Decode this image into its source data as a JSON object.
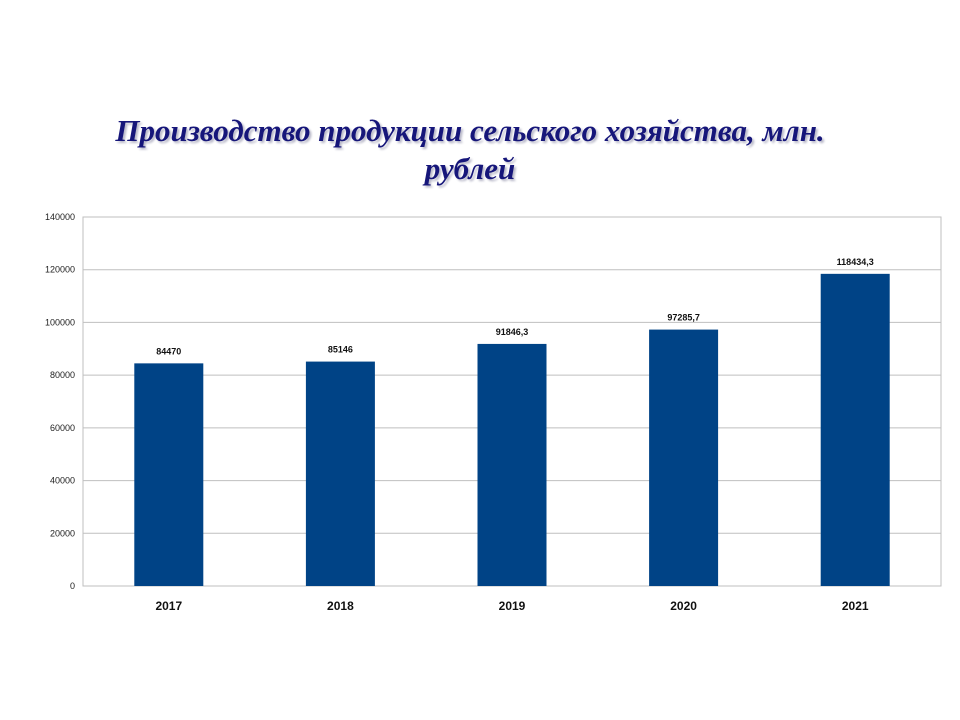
{
  "title_line1": "Производство продукции сельского хозяйства, млн.",
  "title_line2": "рублей",
  "chart_data": {
    "type": "bar",
    "title": "Производство продукции сельского хозяйства, млн. рублей",
    "categories": [
      "2017",
      "2018",
      "2019",
      "2020",
      "2021"
    ],
    "values": [
      84470,
      85146,
      91846.3,
      97285.7,
      118434.3
    ],
    "data_labels": [
      "84470",
      "85146",
      "91846,3",
      "97285,7",
      "118434,3"
    ],
    "y_ticks": [
      0,
      20000,
      40000,
      60000,
      80000,
      100000,
      120000,
      140000
    ],
    "ylim": [
      0,
      140000
    ],
    "xlabel": "",
    "ylabel": "",
    "grid": true,
    "legend": "none",
    "bar_color": "#004386",
    "grid_color": "#bfbfbf"
  }
}
